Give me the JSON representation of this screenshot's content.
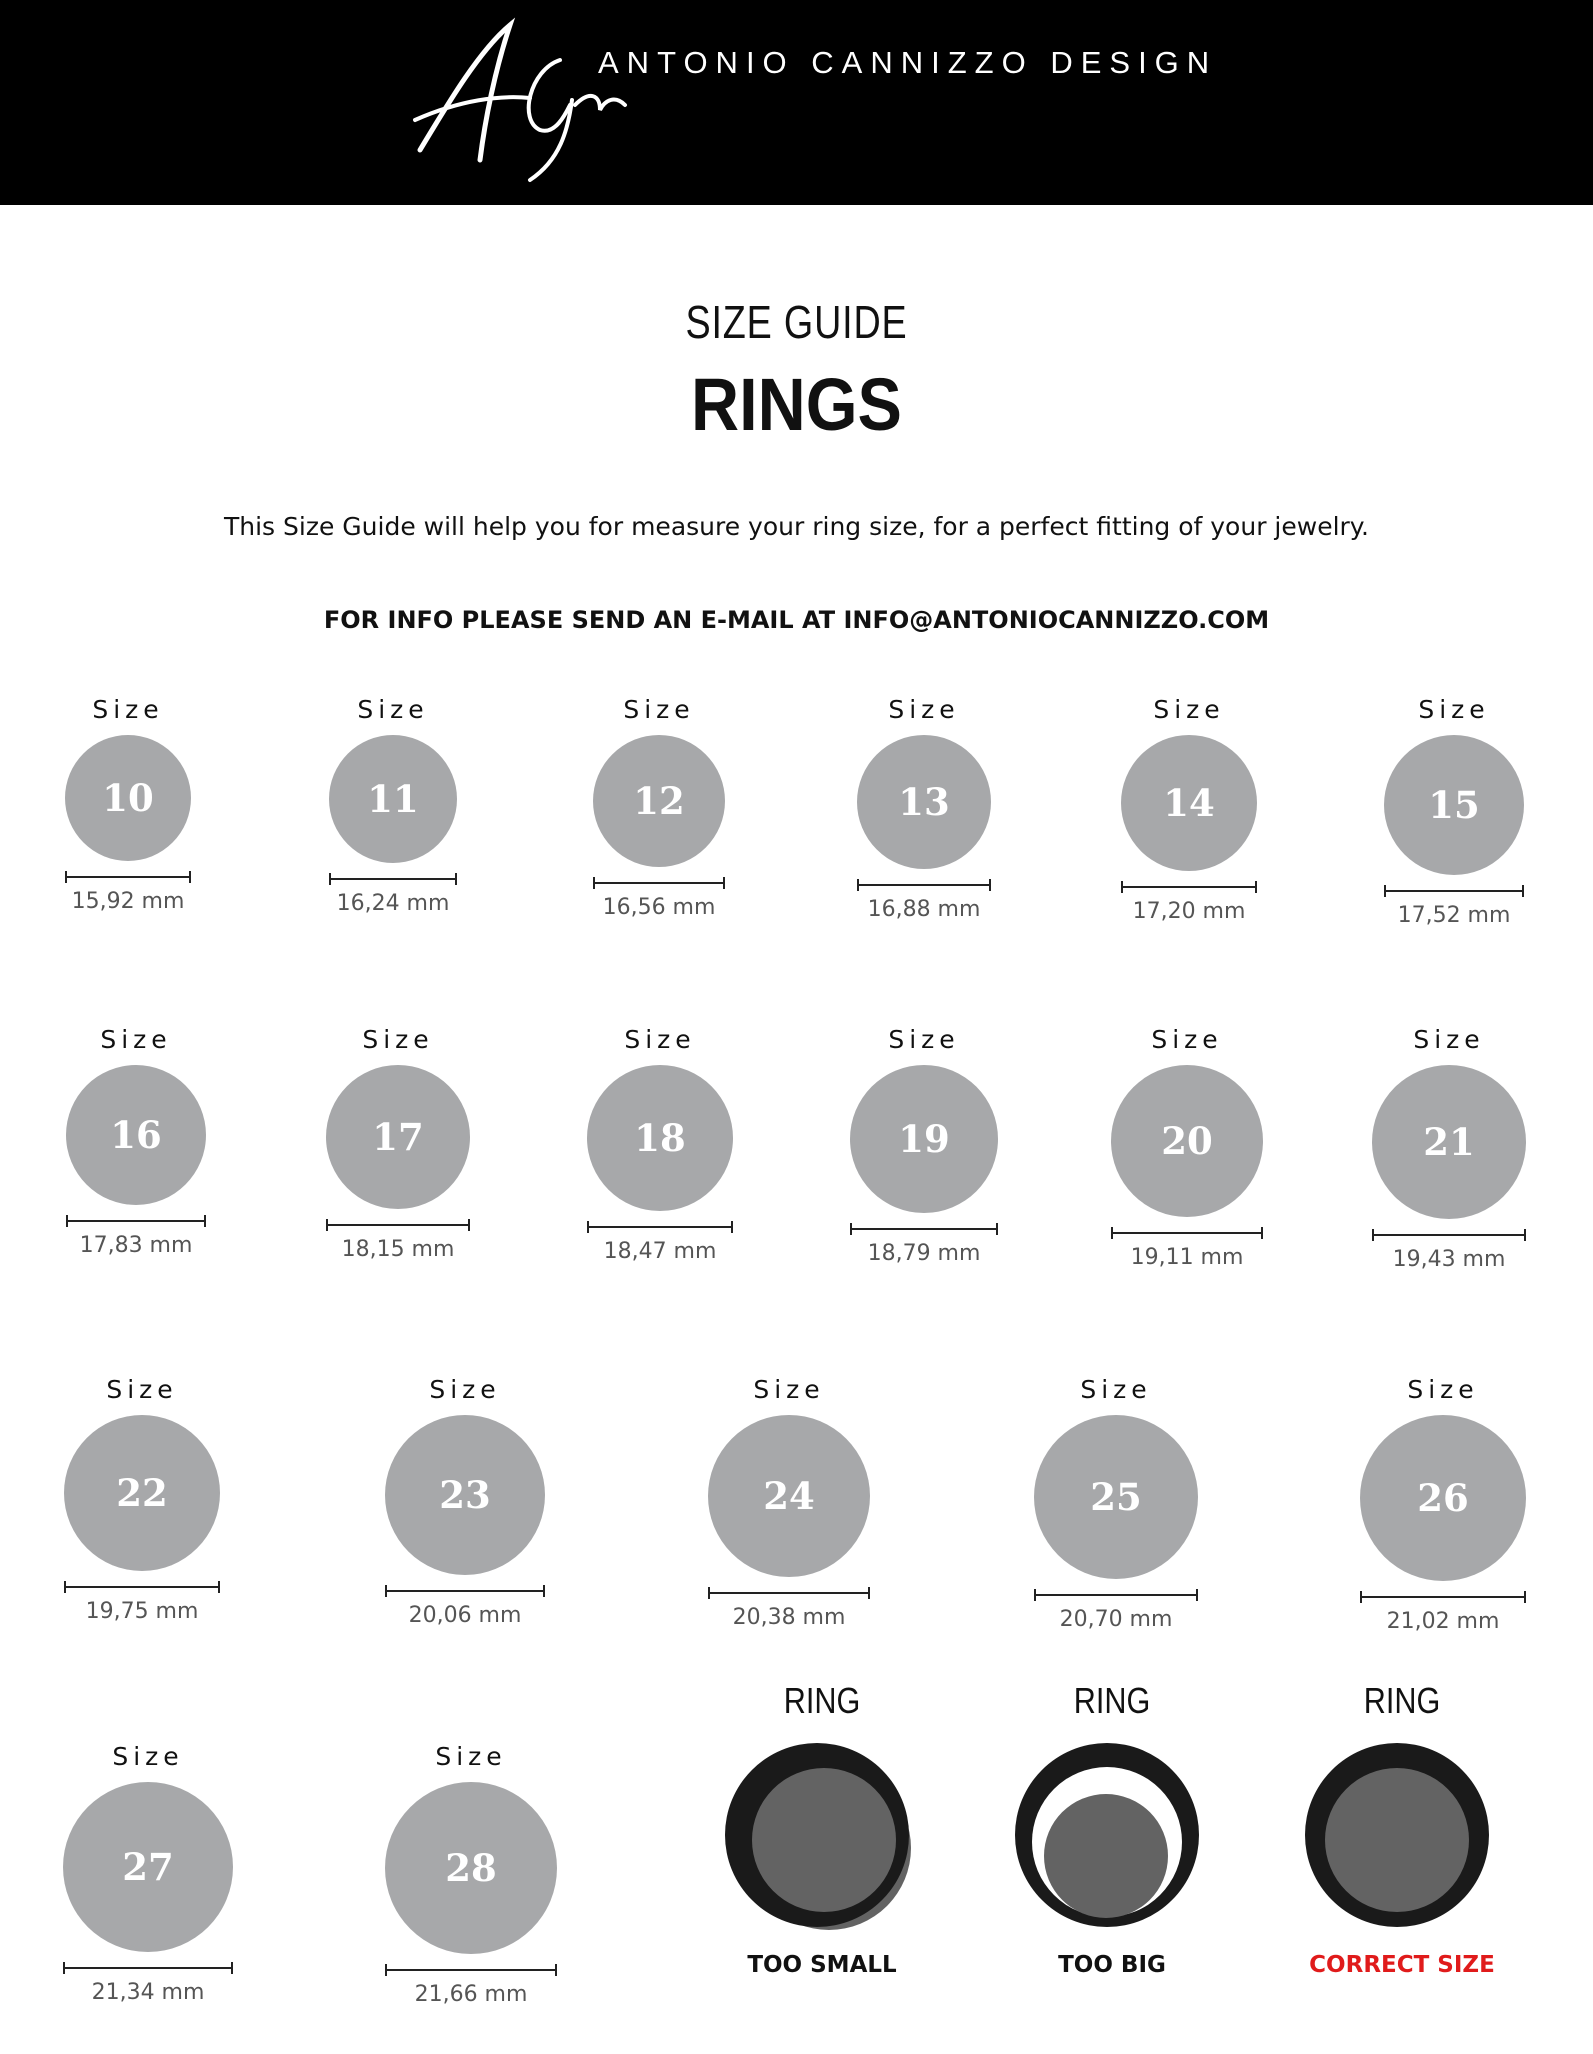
{
  "header": {
    "logo_text": "ACyp",
    "brand": "ANTONIO CANNIZZO DESIGN"
  },
  "heading": {
    "subtitle": "SIZE GUIDE",
    "title": "RINGS"
  },
  "intro": "This Size Guide will help you for measure your ring size, for a perfect fitting of your jewelry.",
  "info": "FOR INFO PLEASE SEND AN E-MAIL AT  INFO@ANTONIOCANNIZZO.COM",
  "size_label": "Size",
  "sizes": [
    {
      "size": "10",
      "mm": "15,92 mm"
    },
    {
      "size": "11",
      "mm": "16,24 mm"
    },
    {
      "size": "12",
      "mm": "16,56 mm"
    },
    {
      "size": "13",
      "mm": "16,88 mm"
    },
    {
      "size": "14",
      "mm": "17,20 mm"
    },
    {
      "size": "15",
      "mm": "17,52 mm"
    },
    {
      "size": "16",
      "mm": "17,83 mm"
    },
    {
      "size": "17",
      "mm": "18,15 mm"
    },
    {
      "size": "18",
      "mm": "18,47 mm"
    },
    {
      "size": "19",
      "mm": "18,79 mm"
    },
    {
      "size": "20",
      "mm": "19,11 mm"
    },
    {
      "size": "21",
      "mm": "19,43 mm"
    },
    {
      "size": "22",
      "mm": "19,75 mm"
    },
    {
      "size": "23",
      "mm": "20,06 mm"
    },
    {
      "size": "24",
      "mm": "20,38 mm"
    },
    {
      "size": "25",
      "mm": "20,70 mm"
    },
    {
      "size": "26",
      "mm": "21,02 mm"
    },
    {
      "size": "27",
      "mm": "21,34 mm"
    },
    {
      "size": "28",
      "mm": "21,66 mm"
    }
  ],
  "fit": [
    {
      "title": "RING",
      "label": "TOO SMALL",
      "accent": "#111111"
    },
    {
      "title": "RING",
      "label": "TOO BIG",
      "accent": "#111111"
    },
    {
      "title": "RING",
      "label": "CORRECT SIZE",
      "accent": "#e01b1b"
    }
  ],
  "colors": {
    "header_bg": "#000000",
    "ring_gray": "#a7a8aa",
    "ring_dark": "#1a1a1a",
    "finger_gray": "#636363",
    "correct_red": "#e01b1b"
  }
}
